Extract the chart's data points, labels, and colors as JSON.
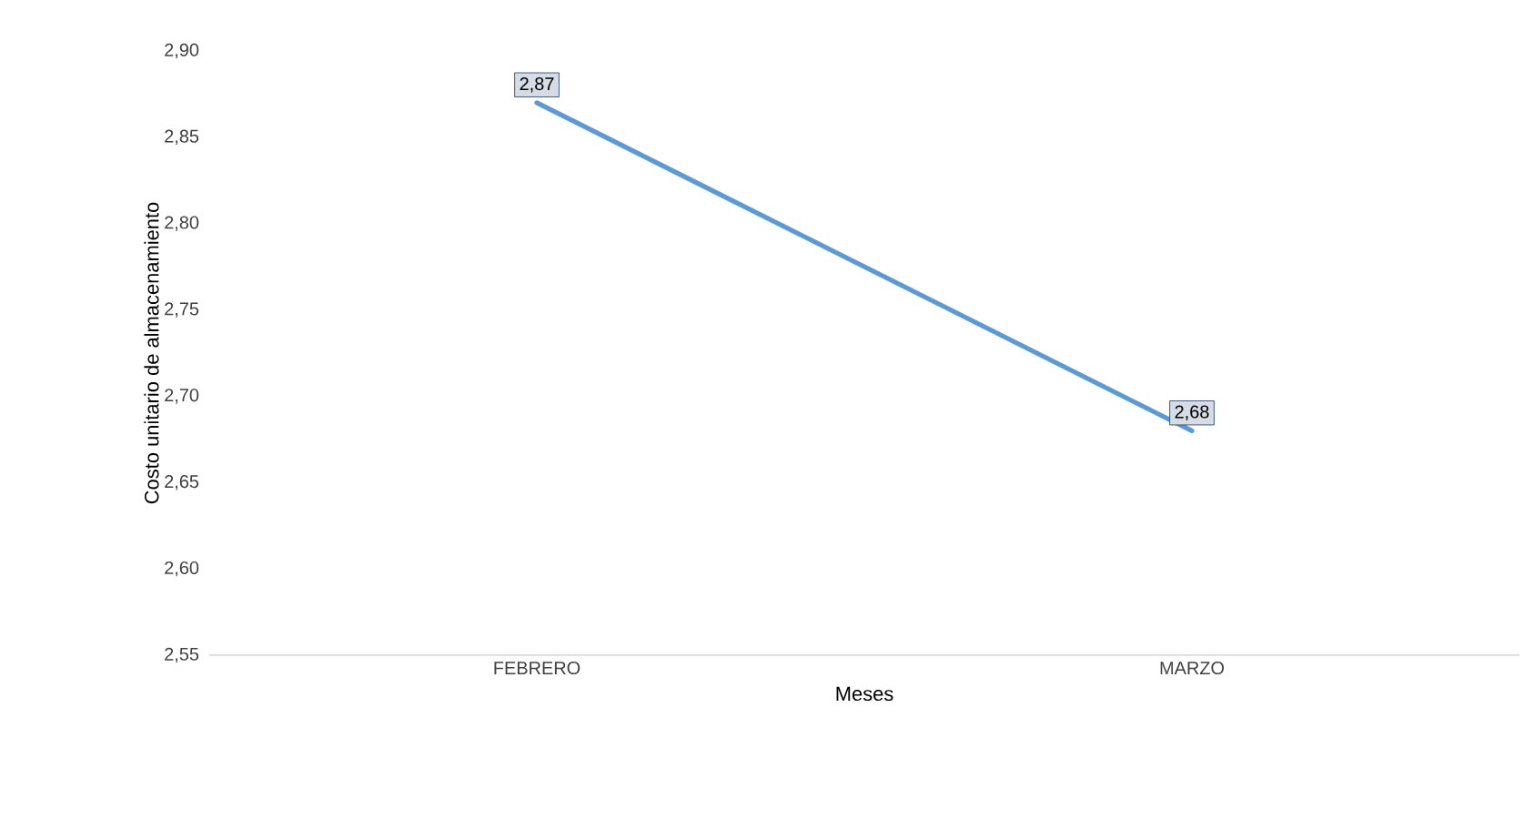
{
  "chart_data": {
    "type": "line",
    "xlabel": "Meses",
    "ylabel": "Costo unitario de almacenamiento",
    "categories": [
      "FEBRERO",
      "MARZO"
    ],
    "values": [
      2.87,
      2.68
    ],
    "value_labels": [
      "2,87",
      "2,68"
    ],
    "color": "#5b9bd5",
    "ylim": [
      2.55,
      2.9
    ],
    "yticks": [
      {
        "value": 2.55,
        "label": "2,55"
      },
      {
        "value": 2.6,
        "label": "2,60"
      },
      {
        "value": 2.65,
        "label": "2,65"
      },
      {
        "value": 2.7,
        "label": "2,70"
      },
      {
        "value": 2.75,
        "label": "2,75"
      },
      {
        "value": 2.8,
        "label": "2,80"
      },
      {
        "value": 2.85,
        "label": "2,85"
      },
      {
        "value": 2.9,
        "label": "2,90"
      }
    ],
    "grid": false,
    "marker": "none",
    "line_style": "solid"
  }
}
